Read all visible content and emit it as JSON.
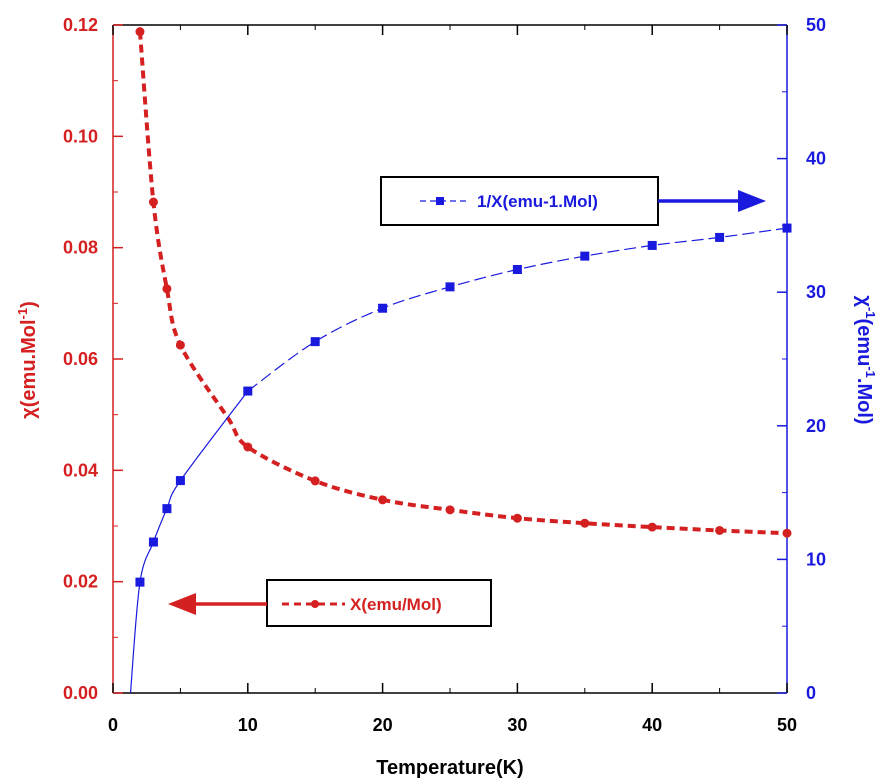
{
  "chart_data": {
    "type": "scatter",
    "title": "",
    "xlabel": "Temperature(K)",
    "ylabel_left": {
      "main": "χ(emu.Mol",
      "sup": "-1",
      "end": ")"
    },
    "ylabel_right": {
      "main": "χ",
      "sup1": "-1",
      "mid": "(emu",
      "sup2": "-1",
      "end": ".Mol)"
    },
    "xlim": [
      0,
      50
    ],
    "ylim_left": [
      0,
      0.12
    ],
    "ylim_right": [
      0,
      50
    ],
    "x_ticks": [
      "0",
      "10",
      "20",
      "30",
      "40",
      "50"
    ],
    "y_left_ticks": [
      "0.00",
      "0.02",
      "0.04",
      "0.06",
      "0.08",
      "0.10",
      "0.12"
    ],
    "y_right_ticks": [
      "0",
      "10",
      "20",
      "30",
      "40",
      "50"
    ],
    "grid": false,
    "series": [
      {
        "name": "X(emu/Mol)",
        "axis": "left",
        "color": "#d42020",
        "line_style": "dashed",
        "marker": "circle",
        "legend_arrow": "left",
        "x": [
          2,
          3,
          4,
          5,
          10,
          15,
          20,
          25,
          30,
          35,
          40,
          45,
          50
        ],
        "y": [
          0.1188,
          0.0882,
          0.0726,
          0.0625,
          0.0442,
          0.0381,
          0.0347,
          0.0329,
          0.0314,
          0.0305,
          0.0298,
          0.0292,
          0.0287
        ],
        "curve_extra": {
          "x": [
            8.5
          ],
          "y": [
            0.0495
          ]
        }
      },
      {
        "name": "1/X(emu-1.Mol)",
        "axis": "right",
        "color": "#1a1adf",
        "line_style": "solid",
        "marker": "square",
        "legend_arrow": "right",
        "x": [
          2,
          3,
          4,
          5,
          10,
          15,
          20,
          25,
          30,
          35,
          40,
          45,
          50
        ],
        "y": [
          8.3,
          11.3,
          13.8,
          15.9,
          22.6,
          26.3,
          28.8,
          30.4,
          31.7,
          32.7,
          33.5,
          34.1,
          34.8
        ],
        "curve_extra": {
          "x": [
            1.3
          ],
          "y": [
            0
          ]
        }
      }
    ]
  }
}
